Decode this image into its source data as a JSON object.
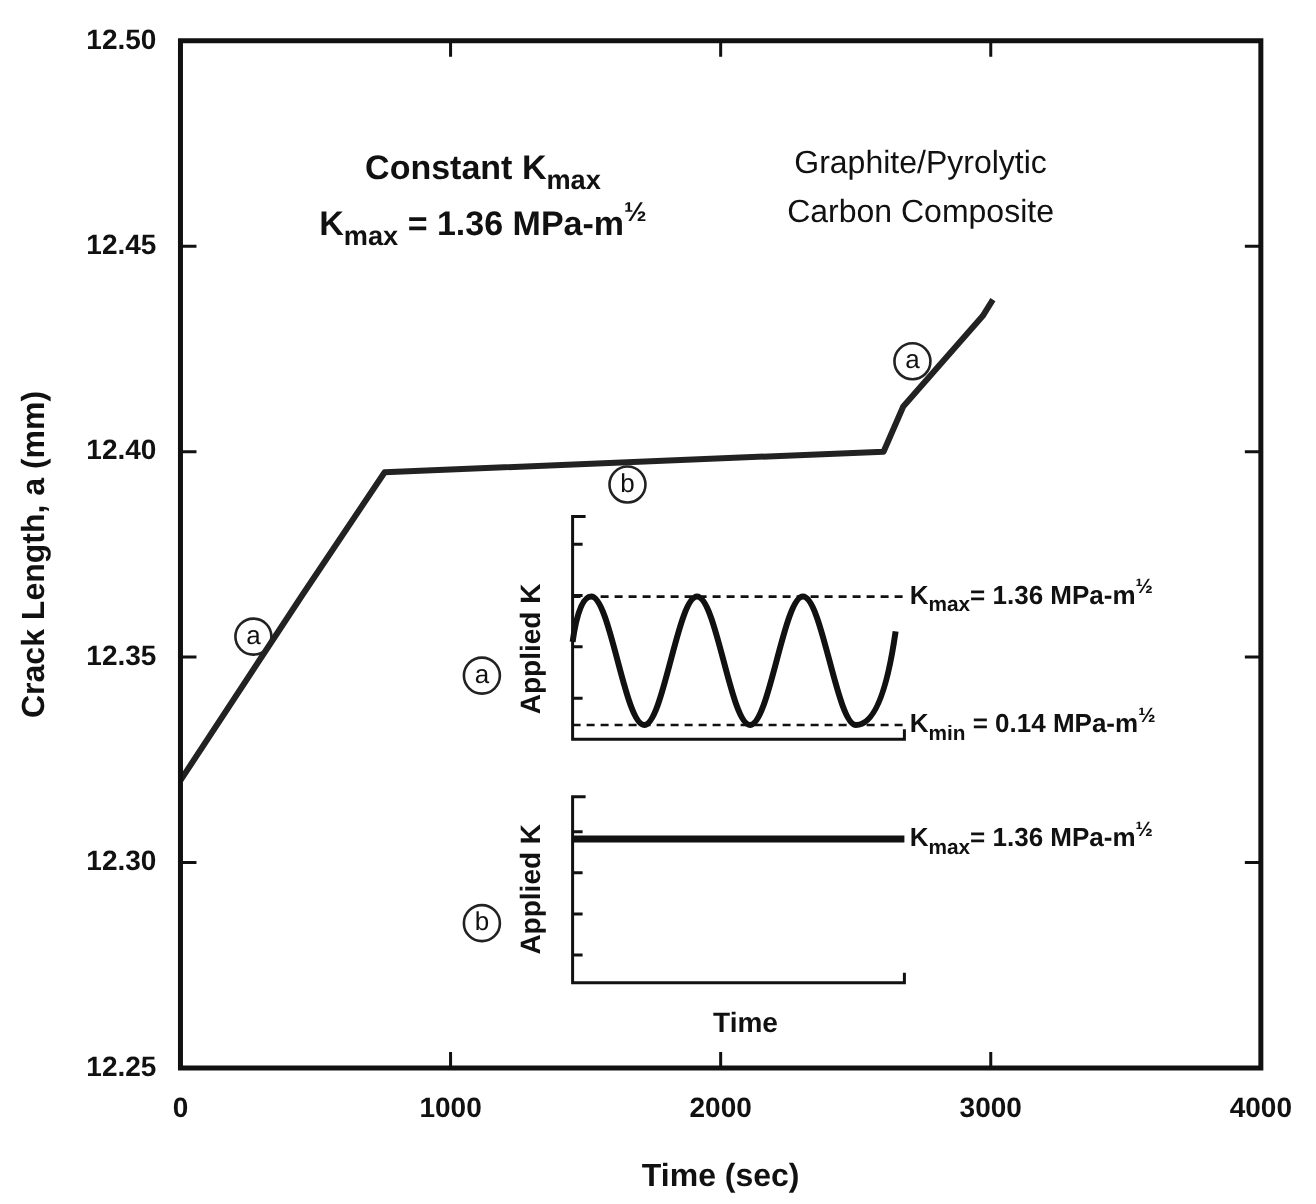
{
  "chart_data": {
    "type": "line",
    "title": "Constant K$_{max}$",
    "subtitle": "K$_{max}$ = 1.36 MPa-m$^{½}$",
    "xlabel": "Time (sec)",
    "ylabel": "Crack Length, a (mm)",
    "x": [
      0,
      450,
      756,
      2603,
      2676,
      2970,
      3008
    ],
    "series": [
      {
        "color": "#222222",
        "values": [
          12.32,
          12.365,
          12.395,
          12.4,
          12.411,
          12.433,
          12.437
        ]
      }
    ],
    "xlim": [
      0,
      4000
    ],
    "xticks": [
      0,
      1000,
      2000,
      3000,
      4000
    ],
    "ylim": [
      12.25,
      12.5
    ],
    "yticks": [
      {
        "value": 12.25,
        "label": "12.25"
      },
      {
        "value": 12.3,
        "label": "12.30"
      },
      {
        "value": 12.35,
        "label": "12.35"
      },
      {
        "value": 12.4,
        "label": "12.40"
      },
      {
        "value": 12.45,
        "label": "12.45"
      },
      {
        "value": 12.5,
        "label": "12.50"
      }
    ],
    "legend": false,
    "marker": "none",
    "line_style": "solid",
    "annotations": [
      {
        "text": "a",
        "x": 270,
        "y": 12.355
      },
      {
        "text": "b",
        "x": 1655,
        "y": 12.392
      },
      {
        "text": "a",
        "x": 2710,
        "y": 12.422
      },
      "Graphite/Pyrolytic\nCarbon Composite",
      "a",
      "Applied K",
      "K$_{max}$= 1.36 MPa-m$^{½}$",
      "K$_{min}$ = 0.14 MPa-m$^{½}$",
      "b",
      "Applied K",
      "K$_{max}$= 1.36 MPa-m$^{½}$",
      "Time"
    ]
  }
}
